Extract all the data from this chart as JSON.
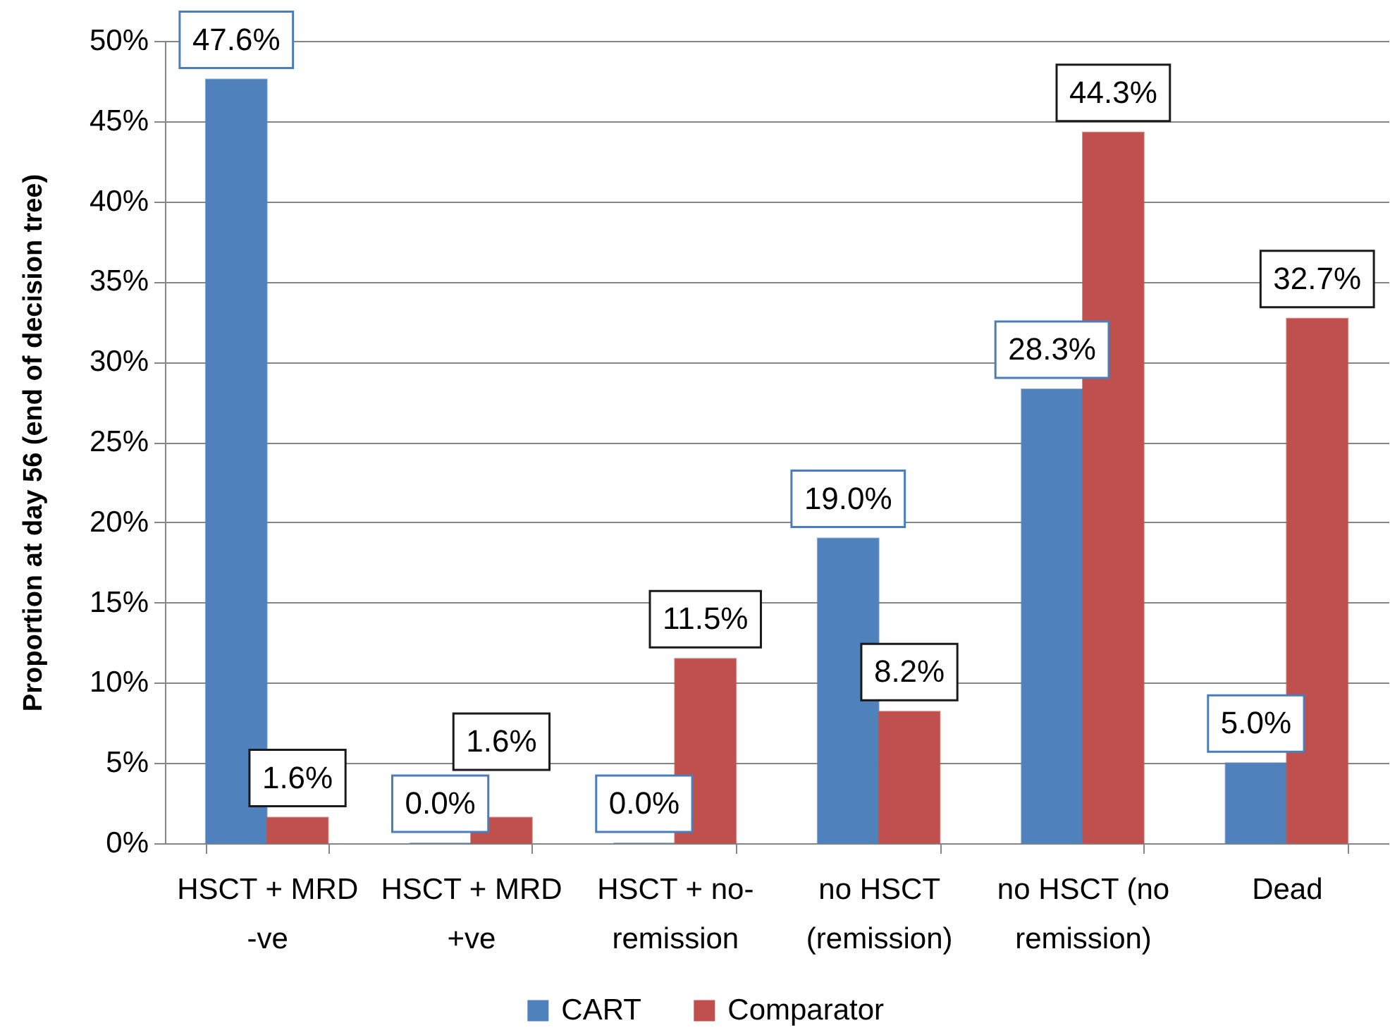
{
  "chart_data": {
    "type": "bar",
    "ylabel": "Proportion at day 56 (end of decision tree)",
    "categories": [
      "HSCT + MRD -ve",
      "HSCT + MRD +ve",
      "HSCT + no-remission",
      "no HSCT (remission)",
      "no HSCT (no remission)",
      "Dead"
    ],
    "series": [
      {
        "name": "CART",
        "color": "#4f81bd",
        "values": [
          47.6,
          0.0,
          0.0,
          19.0,
          28.3,
          5.0
        ],
        "value_labels": [
          "47.6%",
          "0.0%",
          "0.0%",
          "19.0%",
          "28.3%",
          "5.0%"
        ]
      },
      {
        "name": "Comparator",
        "color": "#c0504d",
        "values": [
          1.6,
          1.6,
          11.5,
          8.2,
          44.3,
          32.7
        ],
        "value_labels": [
          "1.6%",
          "1.6%",
          "11.5%",
          "8.2%",
          "44.3%",
          "32.7%"
        ]
      }
    ],
    "ylim": [
      0,
      50
    ],
    "yticks": [
      {
        "value": 0,
        "label": "0%"
      },
      {
        "value": 5,
        "label": "5%"
      },
      {
        "value": 10,
        "label": "10%"
      },
      {
        "value": 15,
        "label": "15%"
      },
      {
        "value": 20,
        "label": "20%"
      },
      {
        "value": 25,
        "label": "25%"
      },
      {
        "value": 30,
        "label": "30%"
      },
      {
        "value": 35,
        "label": "35%"
      },
      {
        "value": 40,
        "label": "40%"
      },
      {
        "value": 45,
        "label": "45%"
      },
      {
        "value": 50,
        "label": "50%"
      }
    ],
    "grid": "y",
    "legend": "bottom"
  }
}
